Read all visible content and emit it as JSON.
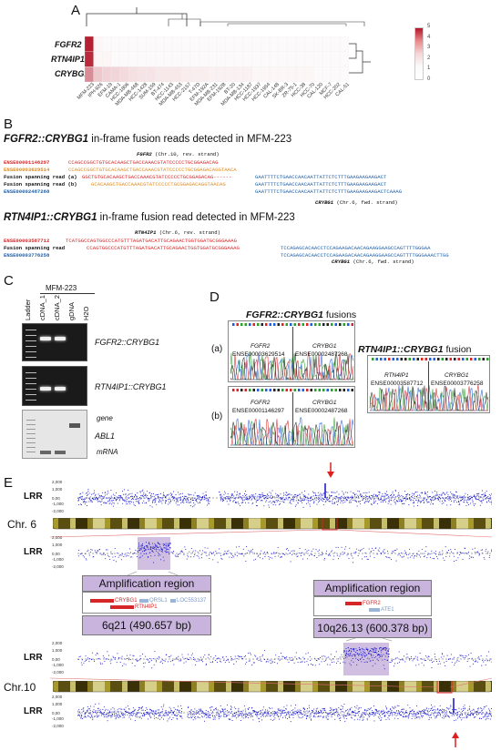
{
  "panels": {
    "A": "A",
    "B": "B",
    "C": "C",
    "D": "D",
    "E": "E"
  },
  "heatmap": {
    "row_labels": [
      "FGFR2",
      "RTN4IP1",
      "CRYBG1"
    ],
    "col_labels": [
      "MFM-223",
      "IPH-926",
      "EFM-19",
      "CAMA-1",
      "HCC-1806",
      "MDA-MB-468",
      "HCC-1428",
      "SUM-159",
      "BT-474",
      "HCC-1143",
      "MDA-MB-453",
      "HCC-2157",
      "T-47D",
      "EFM-192A",
      "MDA-MB-231",
      "EFM-192B",
      "BT-20",
      "MDA-MB-134",
      "HCC-1187",
      "HCC-1937",
      "HCC-1954",
      "CAL-148",
      "SK-BR-3",
      "ZR-75-1",
      "HCC-38",
      "HCC-70",
      "CAL-120",
      "MCF-7",
      "HCC-202",
      "CAL-51"
    ],
    "legend_ticks": [
      "5",
      "4",
      "3",
      "2",
      "1",
      "0"
    ],
    "values": [
      [
        4.8,
        0.2,
        0.1,
        0.1,
        0.1,
        0.1,
        0.1,
        0.1,
        0.1,
        0.1,
        0.1,
        0.1,
        0.1,
        0.1,
        0.1,
        0.1,
        0.1,
        0.1,
        0.1,
        0.1,
        0.1,
        0.1,
        0.1,
        0.1,
        0.1,
        0.1,
        0.1,
        0.1,
        0.1,
        0.1
      ],
      [
        4.6,
        0.2,
        0.2,
        0.1,
        0.1,
        0.1,
        0.1,
        0.1,
        0.1,
        0.1,
        0.1,
        0.1,
        0.1,
        0.1,
        0.1,
        0.1,
        0.1,
        0.1,
        0.1,
        0.1,
        0.1,
        0.1,
        0.1,
        0.1,
        0.1,
        0.1,
        0.1,
        0.1,
        0.1,
        0.1
      ],
      [
        2.5,
        1.2,
        1.0,
        0.9,
        0.8,
        0.7,
        0.6,
        0.6,
        0.5,
        0.5,
        0.5,
        0.4,
        0.4,
        0.4,
        0.3,
        0.3,
        0.3,
        0.3,
        0.3,
        0.2,
        0.2,
        0.2,
        0.2,
        0.2,
        0.2,
        0.2,
        0.1,
        0.1,
        0.1,
        0.1
      ]
    ]
  },
  "sectionB": {
    "title1_gene": "FGFR2::CRYBG1",
    "title1_rest": " in-frame fusion reads detected in MFM-223",
    "title2_gene": "RTN4IP1::CRYBG1",
    "title2_rest": " in-frame fusion read detected in MFM-223",
    "fgfr2_header": "FGFR2",
    "fgfr2_header_rest": " (Chr.10, rev. strand)",
    "crybg1_footer": "CRYBG1",
    "crybg1_footer_rest": " (Chr.6, fwd. strand)",
    "rtn_header": "RTN4IP1",
    "rtn_header_rest": " (Chr.6, rev. strand)",
    "crybg1_footer2": "CRYBG1",
    "crybg1_footer2_rest": " (Chr.6, fwd. strand)",
    "block1": [
      {
        "label": "ENSE00001146297",
        "c1": "CCAGCCGGCTGTGCACAAGCTGACCAAACGTATCCCCCTGCGGAGACAG",
        "c2": "",
        "c3": ""
      },
      {
        "label": "ENSE00003629514",
        "c1": "CCAGCCGGCTGTGCACAAGCTGACCAAACGTATCCCCCTGCGGAGACAGGTAACA",
        "c2": "",
        "c3": ""
      },
      {
        "label": "Fusion spanning read (a)",
        "c1": "GGCTGTGCACAAGCTGACCAAACGTATCCCCCTGCGGAGACAG------",
        "c2": "GAATTTTCTGAACCAACAATTATTCTCTTTGAAGAAGAAGACT",
        "c3": ""
      },
      {
        "label": "Fusion spanning read (b)",
        "c1": "GCACAAGCTGACCAAACGTATCCCCCTGCGGAGACAGGTAACAG",
        "c2": "GAATTTTCTGAACCAACAATTATTCTCTTTGAAGAAGAAGACT",
        "c3": ""
      },
      {
        "label": "ENSE00002487268",
        "c1": "",
        "c2": "GAATTTTCTGAACCAACAATTATTCTCTTTGAAGAAGAAGACTCAAAG",
        "c3": ""
      }
    ],
    "block2": [
      {
        "label": "ENSE00003587712",
        "c1": "TCATGGCCAGTGGCCCATGTTTAGATGACATTGCAGAACTGGTGGATGCGGGAAAG",
        "c2": ""
      },
      {
        "label": "Fusion spanning read",
        "c1": "CCAGTGGCCCATGTTTAGATGACATTGCAGAACTGGTGGATGCGGGAAAG",
        "c2": "TCCAGAGCACAACCTCCAGAAGACAACAGAAGGAAGCCAGTTTTGGGAA"
      },
      {
        "label": "ENSE00003776258",
        "c1": "",
        "c2": "TCCAGAGCACAACCTCCAGAAGACAACAGAAGGAAGCCAGTTTTGGGAAACTTGG"
      }
    ]
  },
  "gel": {
    "header": "MFM-223",
    "lanes": [
      "Ladder",
      "cDNA_1",
      "cDNA_2",
      "gDNA",
      "H2O"
    ],
    "label1": "FGFR2::CRYBG1",
    "label2": "RTN4IP1::CRYBG1",
    "label3_gene": "gene",
    "label3_abl": "ABL1",
    "label3_mrna": "mRNA"
  },
  "sanger": {
    "fgfr2_title_gene": "FGFR2::CRYBG1",
    "fgfr2_title_rest": " fusions",
    "rtn_title_gene": "RTN4IP1::CRYBG1",
    "rtn_title_rest": " fusion",
    "a": "(a)",
    "b": "(b)",
    "a_left_gene": "FGFR2",
    "a_left_id": "ENSE00003629514",
    "a_right_gene": "CRYBG1",
    "a_right_id": "ENSE00002487268",
    "b_left_gene": "FGFR2",
    "b_left_id": "ENSE00001146297",
    "b_right_gene": "CRYBG1",
    "b_right_id": "ENSE00002487268",
    "r_left_gene": "RTN4IP1",
    "r_left_id": "ENSE00003587712",
    "r_right_gene": "CRYBG1",
    "r_right_id": "ENSE00003776258"
  },
  "cnv": {
    "lrr": "LRR",
    "chr6": "Chr. 6",
    "chr10": "Chr.10",
    "amp_title": "Amplification region",
    "amp1_coord": "6q21 (490.657 bp)",
    "amp2_coord": "10q26.13 (600.378 bp)",
    "amp1_genes": [
      "CRYBG1",
      "QRSL1",
      "LOC553137",
      "RTN4IP1"
    ],
    "amp2_genes": [
      "FGFR2",
      "ATE1"
    ],
    "ytick_top": "2,000",
    "ytick_mid": "1,000",
    "ytick_zero": "0,00",
    "ytick_neg1": "-1,000",
    "ytick_neg2": "-2,000"
  },
  "colors": {
    "red": "#d62728",
    "orange": "#e08a1e",
    "blue": "#1f5fa8",
    "purple": "#c9b4dd",
    "dots": "#1010c8"
  }
}
